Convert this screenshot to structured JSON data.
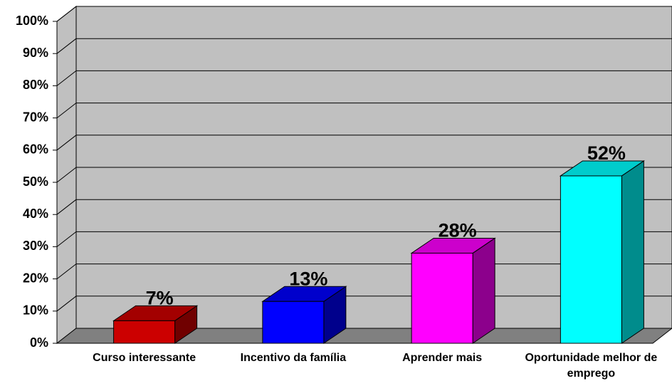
{
  "chart_data": {
    "type": "bar3d",
    "categories": [
      "Curso interessante",
      "Incentivo da família",
      "Aprender mais",
      "Oportunidade melhor de emprego"
    ],
    "values": [
      7,
      13,
      28,
      52
    ],
    "value_labels": [
      "7%",
      "13%",
      "28%",
      "52%"
    ],
    "colors": [
      "#cc0000",
      "#0000ff",
      "#ff00ff",
      "#00ffff"
    ],
    "ylim": [
      0,
      100
    ],
    "yticks": [
      {
        "value": 0,
        "label": "0%"
      },
      {
        "value": 10,
        "label": "10%"
      },
      {
        "value": 20,
        "label": "20%"
      },
      {
        "value": 30,
        "label": "30%"
      },
      {
        "value": 40,
        "label": "40%"
      },
      {
        "value": 50,
        "label": "50%"
      },
      {
        "value": 60,
        "label": "60%"
      },
      {
        "value": 70,
        "label": "70%"
      },
      {
        "value": 80,
        "label": "80%"
      },
      {
        "value": 90,
        "label": "90%"
      },
      {
        "value": 100,
        "label": "100%"
      }
    ],
    "grid": true
  }
}
